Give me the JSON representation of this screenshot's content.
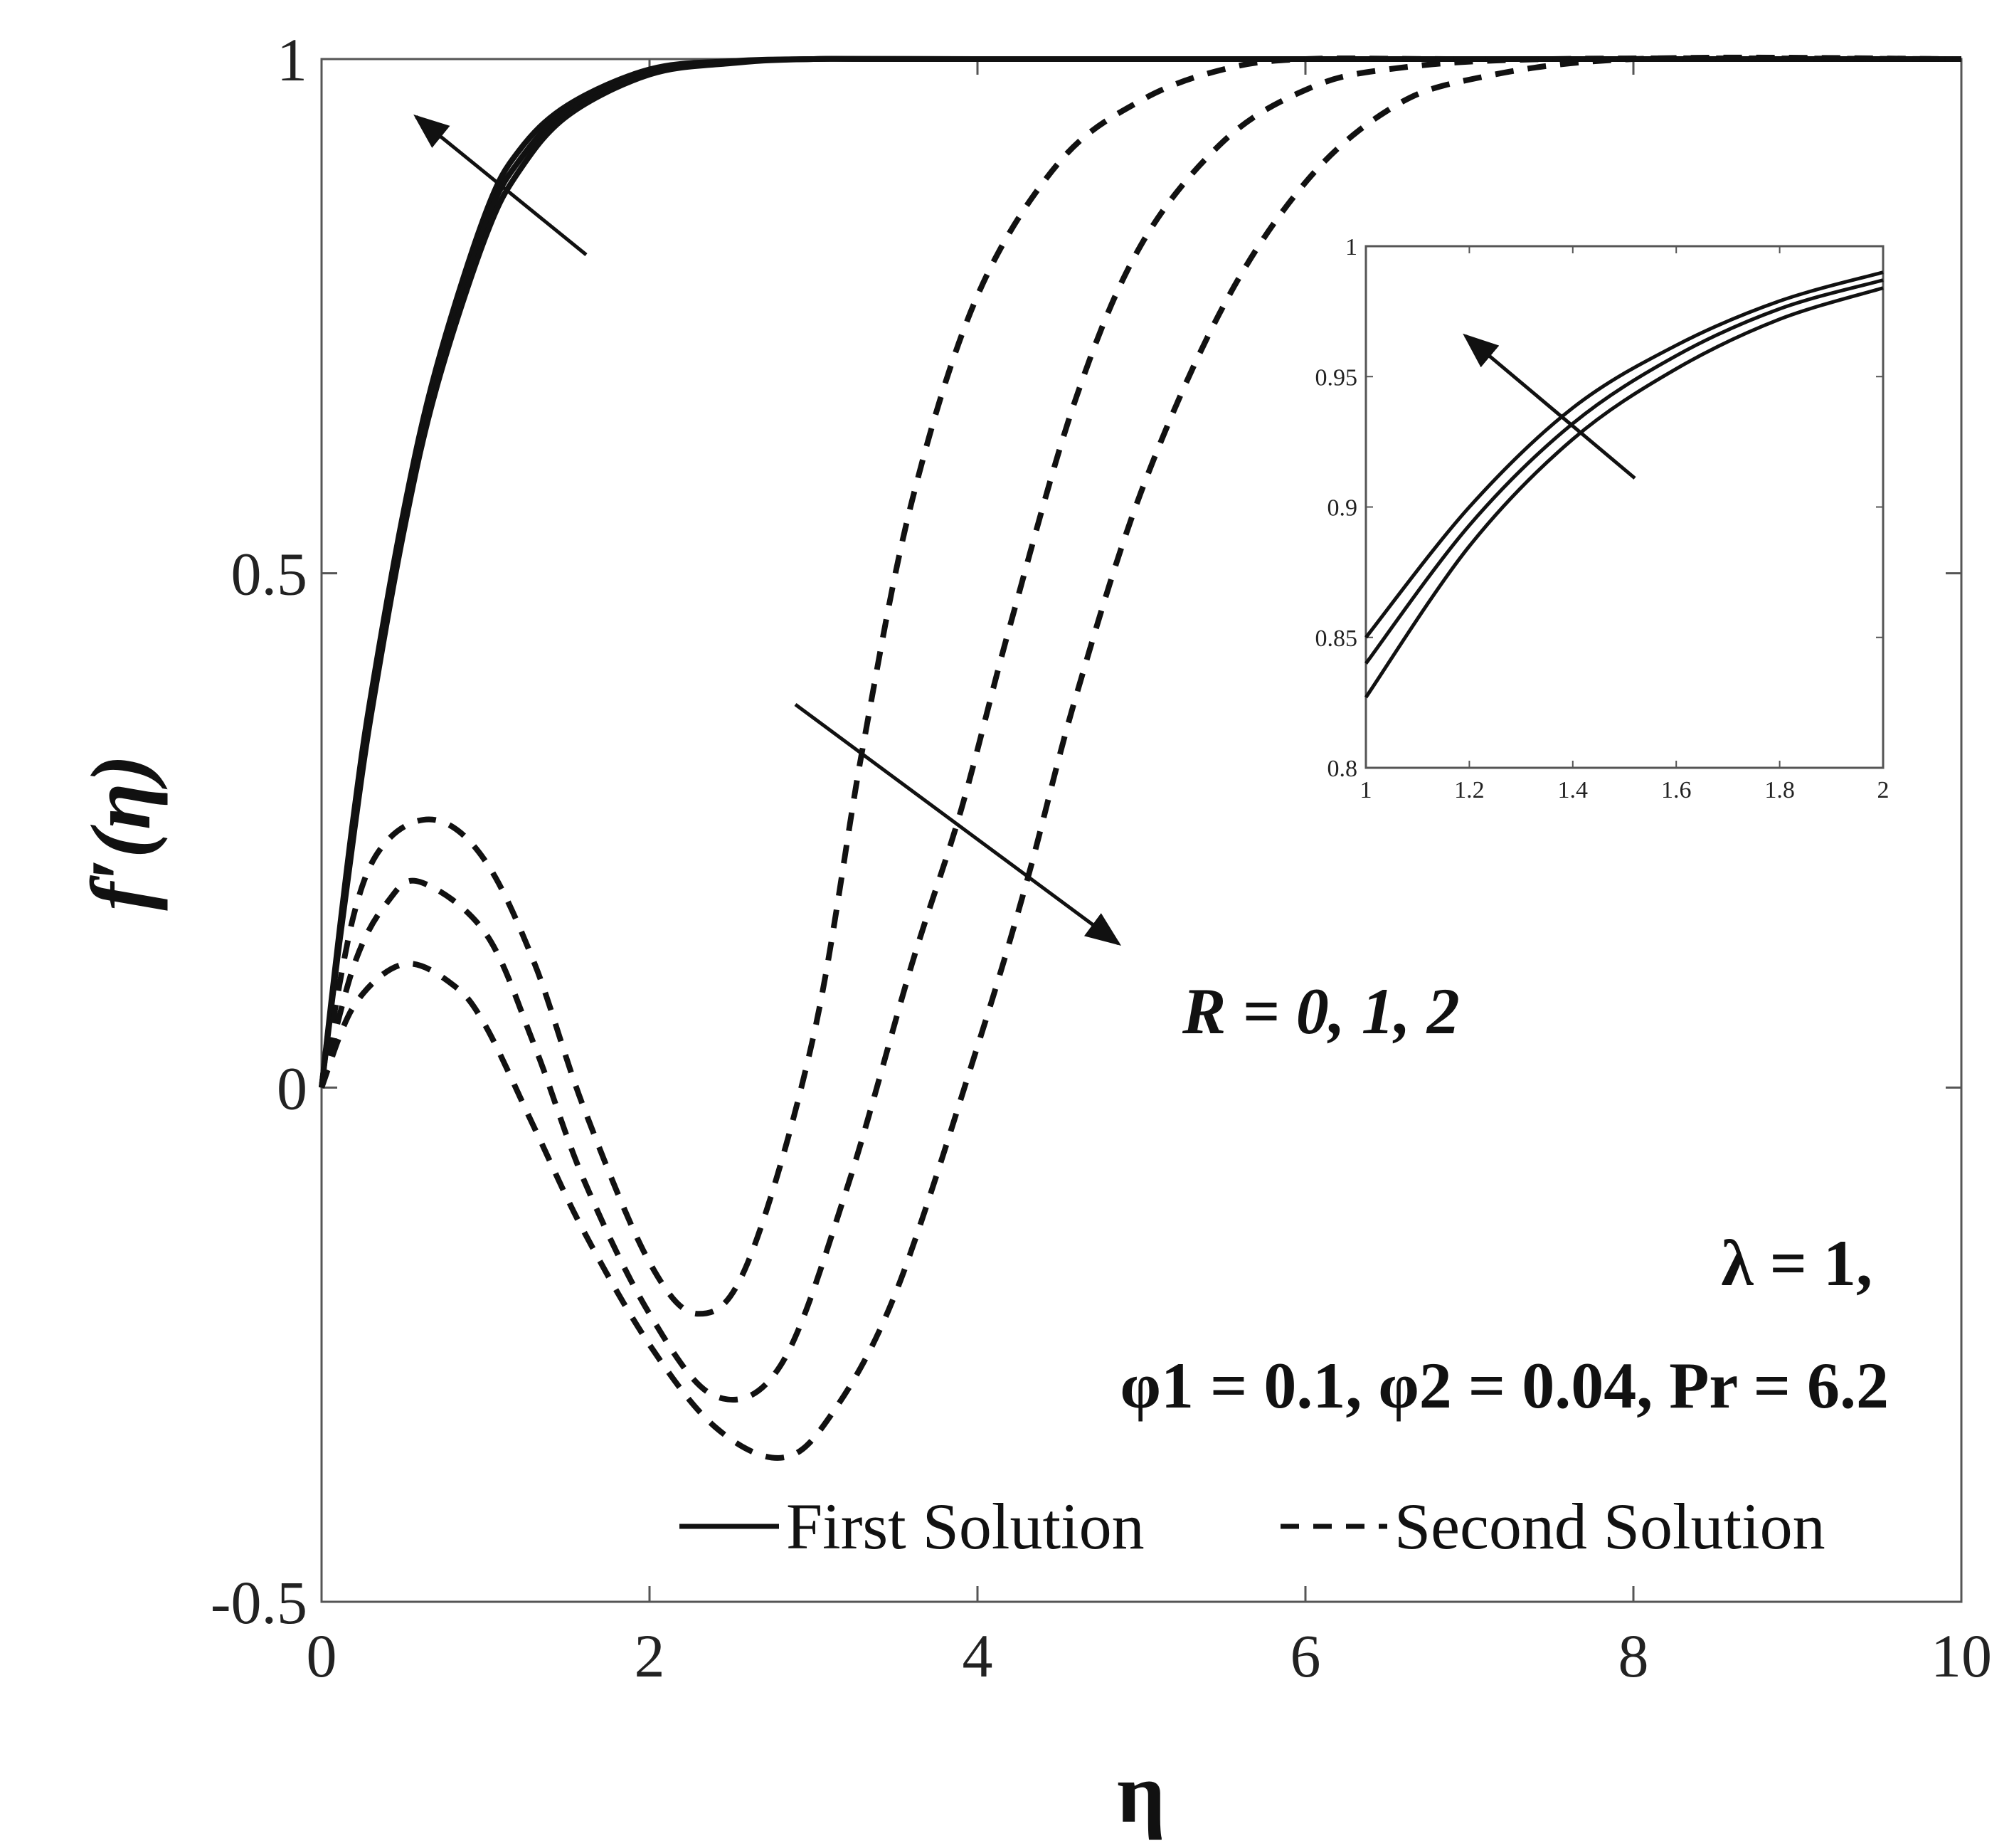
{
  "chart_data": {
    "type": "line",
    "xlabel": "η",
    "ylabel": "f′(η)",
    "xlim": [
      0,
      10
    ],
    "ylim": [
      -0.5,
      1
    ],
    "xticks": [
      "0",
      "2",
      "4",
      "6",
      "8",
      "10"
    ],
    "yticks": [
      "-0.5",
      "0",
      "0.5",
      "1"
    ],
    "grid": false,
    "legend": {
      "placement": "bottom-right",
      "entries": [
        {
          "label": "First Solution",
          "style": "solid"
        },
        {
          "label": "Second Solution",
          "style": "dashed"
        }
      ]
    },
    "annotations": {
      "r_label": "R = 0, 1, 2",
      "lambda_label": "λ = 1,",
      "params_label": "φ1 = 0.1, φ2 = 0.04, Pr = 6.2"
    },
    "series": [
      {
        "style": "solid",
        "x": [
          0,
          0.1,
          0.2,
          0.3,
          0.5,
          0.7,
          1.0,
          1.2,
          1.5,
          2.0,
          2.5,
          3.0,
          4,
          10
        ],
        "y": [
          0,
          0.14,
          0.27,
          0.38,
          0.56,
          0.7,
          0.85,
          0.91,
          0.955,
          0.99,
          0.998,
          1,
          1,
          1
        ]
      },
      {
        "style": "solid",
        "x": [
          0,
          0.1,
          0.2,
          0.3,
          0.5,
          0.7,
          1.0,
          1.2,
          1.5,
          2.0,
          2.5,
          3.0,
          4,
          10
        ],
        "y": [
          0,
          0.135,
          0.26,
          0.37,
          0.55,
          0.69,
          0.84,
          0.9,
          0.95,
          0.987,
          0.997,
          1,
          1,
          1
        ]
      },
      {
        "style": "solid",
        "x": [
          0,
          0.1,
          0.2,
          0.3,
          0.5,
          0.7,
          1.0,
          1.2,
          1.5,
          2.0,
          2.5,
          3.0,
          4,
          10
        ],
        "y": [
          0,
          0.13,
          0.25,
          0.36,
          0.54,
          0.68,
          0.827,
          0.89,
          0.945,
          0.985,
          0.996,
          1,
          1,
          1
        ]
      },
      {
        "style": "dashed",
        "x": [
          0,
          0.2,
          0.4,
          0.7,
          1.0,
          1.3,
          1.6,
          2.0,
          2.3,
          2.6,
          3.0,
          3.3,
          3.6,
          4.0,
          4.5,
          5.0,
          5.5,
          6.0,
          7.0,
          10
        ],
        "y": [
          0,
          0.17,
          0.24,
          0.26,
          0.22,
          0.12,
          -0.02,
          -0.17,
          -0.22,
          -0.17,
          0.05,
          0.33,
          0.57,
          0.77,
          0.9,
          0.96,
          0.99,
          1,
          1,
          1
        ]
      },
      {
        "style": "dashed",
        "x": [
          0,
          0.2,
          0.4,
          0.6,
          1.0,
          1.3,
          1.6,
          2.0,
          2.4,
          2.8,
          3.2,
          3.6,
          3.9,
          4.2,
          4.6,
          5.0,
          5.5,
          6.0,
          6.5,
          7.5,
          10
        ],
        "y": [
          0,
          0.12,
          0.18,
          0.2,
          0.15,
          0.04,
          -0.09,
          -0.22,
          -0.3,
          -0.27,
          -0.1,
          0.12,
          0.27,
          0.45,
          0.67,
          0.82,
          0.92,
          0.97,
          0.99,
          1,
          1
        ]
      },
      {
        "style": "dashed",
        "x": [
          0,
          0.2,
          0.5,
          0.8,
          1.0,
          1.3,
          1.6,
          2.0,
          2.4,
          2.8,
          3.1,
          3.5,
          4.0,
          4.3,
          4.6,
          5.0,
          5.5,
          6.0,
          6.5,
          7.0,
          8.0,
          10
        ],
        "y": [
          0,
          0.08,
          0.12,
          0.1,
          0.06,
          -0.04,
          -0.14,
          -0.25,
          -0.33,
          -0.36,
          -0.32,
          -0.2,
          0.04,
          0.2,
          0.38,
          0.58,
          0.76,
          0.88,
          0.95,
          0.98,
          1,
          1
        ]
      }
    ],
    "inset": {
      "xlim": [
        1,
        2
      ],
      "ylim": [
        0.8,
        1
      ],
      "xticks": [
        "1",
        "1.2",
        "1.4",
        "1.6",
        "1.8",
        "2"
      ],
      "yticks": [
        "0.8",
        "0.85",
        "0.9",
        "0.95",
        "1"
      ],
      "series": [
        {
          "x": [
            1,
            1.2,
            1.4,
            1.6,
            1.8,
            2
          ],
          "y": [
            0.85,
            0.9,
            0.938,
            0.962,
            0.979,
            0.99
          ]
        },
        {
          "x": [
            1,
            1.2,
            1.4,
            1.6,
            1.8,
            2
          ],
          "y": [
            0.84,
            0.893,
            0.932,
            0.958,
            0.976,
            0.987
          ]
        },
        {
          "x": [
            1,
            1.2,
            1.4,
            1.6,
            1.8,
            2
          ],
          "y": [
            0.827,
            0.885,
            0.926,
            0.953,
            0.972,
            0.984
          ]
        }
      ]
    }
  }
}
